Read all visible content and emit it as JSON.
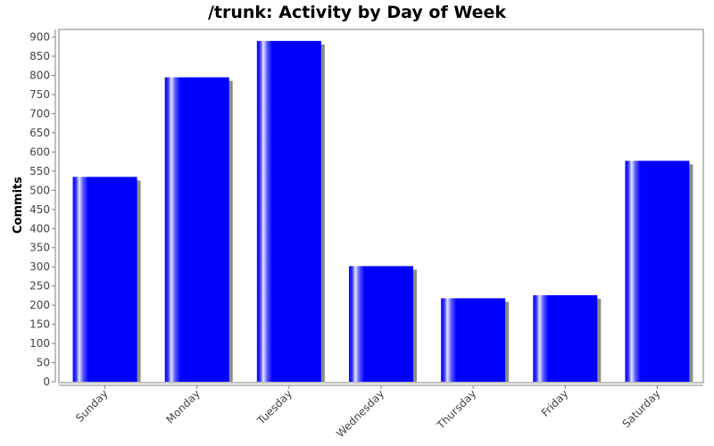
{
  "chart_data": {
    "type": "bar",
    "title": "/trunk: Activity by Day of Week",
    "xlabel": "",
    "ylabel": "Commits",
    "categories": [
      "Sunday",
      "Monday",
      "Tuesday",
      "Wednesday",
      "Thursday",
      "Friday",
      "Saturday"
    ],
    "values": [
      535,
      795,
      890,
      302,
      218,
      226,
      577
    ],
    "ylim": [
      0,
      920
    ],
    "yticks": [
      0,
      50,
      100,
      150,
      200,
      250,
      300,
      350,
      400,
      450,
      500,
      550,
      600,
      650,
      700,
      750,
      800,
      850,
      900
    ],
    "grid": false,
    "legend": "none",
    "colors": {
      "bar": "#0000ff",
      "bar_highlight": "#e6e6ff",
      "shadow": "#8c8c8c",
      "axis": "#808080",
      "tick_text": "#444444"
    }
  }
}
